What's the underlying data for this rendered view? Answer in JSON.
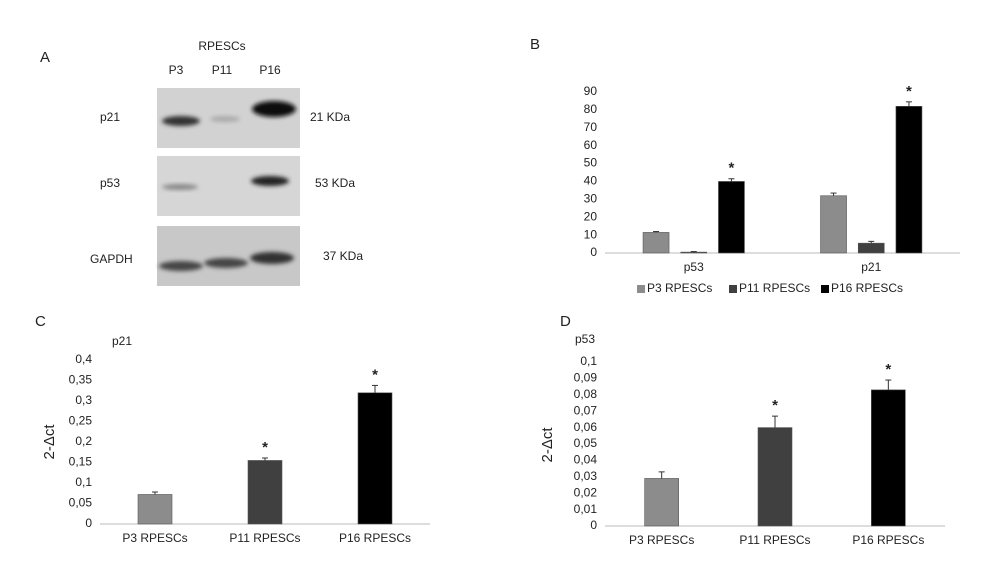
{
  "blot": {
    "panel_label": "A",
    "title": "RPESCs",
    "lanes": [
      "P3",
      "P11",
      "P16"
    ],
    "rows": [
      {
        "label": "p21",
        "size": "21 KDa"
      },
      {
        "label": "p53",
        "size": "53 KDa"
      },
      {
        "label": "GAPDH",
        "size": "37 KDa"
      }
    ]
  },
  "chart_data": [
    {
      "type": "bar",
      "panel_label": "B",
      "categories": [
        "p53",
        "p21"
      ],
      "series": [
        {
          "name": "P3 RPESCs",
          "color": "#8c8c8c",
          "values": [
            11.5,
            32
          ],
          "errors": [
            0.5,
            1.5
          ],
          "significance": [
            null,
            null
          ]
        },
        {
          "name": "P11 RPESCs",
          "color": "#404040",
          "values": [
            0.5,
            5.5
          ],
          "errors": [
            0.3,
            1
          ],
          "significance": [
            null,
            null
          ]
        },
        {
          "name": "P16 RPESCs",
          "color": "#000000",
          "values": [
            40,
            82
          ],
          "errors": [
            1.5,
            2.5
          ],
          "significance": [
            "*",
            "*"
          ]
        }
      ],
      "ylim": [
        0,
        90
      ],
      "yticks": [
        0,
        10,
        20,
        30,
        40,
        50,
        60,
        70,
        80,
        90
      ],
      "legend": "bottom"
    },
    {
      "type": "bar",
      "panel_label": "C",
      "title": "p21",
      "y_label": "2-Δct",
      "categories": [
        "P3 RPESCs",
        "P11 RPESCs",
        "P16 RPESCs"
      ],
      "values": [
        0.072,
        0.155,
        0.32
      ],
      "errors": [
        0.006,
        0.006,
        0.018
      ],
      "colors": [
        "#8c8c8c",
        "#404040",
        "#000000"
      ],
      "significance": [
        null,
        "*",
        "*"
      ],
      "ylim": [
        0,
        0.4
      ],
      "yticks": [
        0,
        {
          "value": 0.05,
          "label": "0,05"
        },
        {
          "value": 0.1,
          "label": "0,1"
        },
        {
          "value": 0.15,
          "label": "0,15"
        },
        {
          "value": 0.2,
          "label": "0,2"
        },
        {
          "value": 0.25,
          "label": "0,25"
        },
        {
          "value": 0.3,
          "label": "0,3"
        },
        {
          "value": 0.35,
          "label": "0,35"
        },
        {
          "value": 0.4,
          "label": "0,4"
        }
      ]
    },
    {
      "type": "bar",
      "panel_label": "D",
      "title": "p53",
      "y_label": "2-Δct",
      "categories": [
        "P3 RPESCs",
        "P11 RPESCs",
        "P16 RPESCs"
      ],
      "values": [
        0.029,
        0.06,
        0.083
      ],
      "errors": [
        0.004,
        0.007,
        0.006
      ],
      "colors": [
        "#8c8c8c",
        "#404040",
        "#000000"
      ],
      "significance": [
        null,
        "*",
        "*"
      ],
      "ylim": [
        0,
        0.1
      ],
      "yticks": [
        0,
        {
          "value": 0.01,
          "label": "0,01"
        },
        {
          "value": 0.02,
          "label": "0,02"
        },
        {
          "value": 0.03,
          "label": "0,03"
        },
        {
          "value": 0.04,
          "label": "0,04"
        },
        {
          "value": 0.05,
          "label": "0,05"
        },
        {
          "value": 0.06,
          "label": "0,06"
        },
        {
          "value": 0.07,
          "label": "0,07"
        },
        {
          "value": 0.08,
          "label": "0,08"
        },
        {
          "value": 0.09,
          "label": "0,09"
        },
        {
          "value": 0.1,
          "label": "0,1"
        }
      ]
    }
  ]
}
